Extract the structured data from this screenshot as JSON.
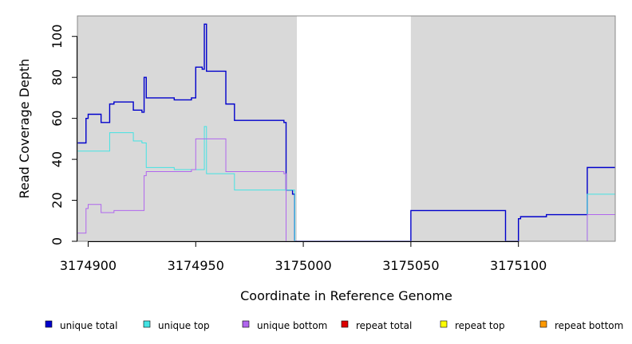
{
  "chart_data": {
    "type": "line",
    "line_style": "step",
    "xlabel": "Coordinate in Reference Genome",
    "ylabel": "Read Coverage Depth",
    "xlim": [
      3174895,
      3175145
    ],
    "ylim": [
      0,
      110
    ],
    "x_ticks": [
      3174900,
      3174950,
      3175000,
      3175050,
      3175100
    ],
    "y_ticks": [
      0,
      20,
      40,
      60,
      80,
      100
    ],
    "grid": false,
    "background_regions": [
      {
        "from": 3174895,
        "to": 3174997,
        "color": "#d9d9d9"
      },
      {
        "from": 3175050,
        "to": 3175145,
        "color": "#d9d9d9"
      }
    ],
    "legend_position": "bottom",
    "series": [
      {
        "name": "unique total",
        "color": "#0000cc",
        "points": [
          [
            3174895,
            48
          ],
          [
            3174899,
            48
          ],
          [
            3174899,
            60
          ],
          [
            3174900,
            60
          ],
          [
            3174900,
            62
          ],
          [
            3174906,
            62
          ],
          [
            3174906,
            58
          ],
          [
            3174910,
            58
          ],
          [
            3174910,
            67
          ],
          [
            3174912,
            67
          ],
          [
            3174912,
            68
          ],
          [
            3174921,
            68
          ],
          [
            3174921,
            64
          ],
          [
            3174925,
            64
          ],
          [
            3174925,
            63
          ],
          [
            3174926,
            63
          ],
          [
            3174926,
            80
          ],
          [
            3174927,
            80
          ],
          [
            3174927,
            70
          ],
          [
            3174940,
            70
          ],
          [
            3174940,
            69
          ],
          [
            3174948,
            69
          ],
          [
            3174948,
            70
          ],
          [
            3174950,
            70
          ],
          [
            3174950,
            85
          ],
          [
            3174953,
            85
          ],
          [
            3174953,
            84
          ],
          [
            3174954,
            84
          ],
          [
            3174954,
            106
          ],
          [
            3174955,
            106
          ],
          [
            3174955,
            83
          ],
          [
            3174964,
            83
          ],
          [
            3174964,
            67
          ],
          [
            3174968,
            67
          ],
          [
            3174968,
            59
          ],
          [
            3174991,
            59
          ],
          [
            3174991,
            58
          ],
          [
            3174992,
            58
          ],
          [
            3174992,
            25
          ],
          [
            3174995,
            25
          ],
          [
            3174995,
            23
          ],
          [
            3174996,
            23
          ],
          [
            3174996,
            0
          ],
          [
            3175050,
            0
          ],
          [
            3175050,
            15
          ],
          [
            3175094,
            15
          ],
          [
            3175094,
            0
          ],
          [
            3175100,
            0
          ],
          [
            3175100,
            11
          ],
          [
            3175101,
            11
          ],
          [
            3175101,
            12
          ],
          [
            3175113,
            12
          ],
          [
            3175113,
            13
          ],
          [
            3175132,
            13
          ],
          [
            3175132,
            36
          ],
          [
            3175145,
            36
          ]
        ]
      },
      {
        "name": "unique top",
        "color": "#44e3e3",
        "points": [
          [
            3174895,
            44
          ],
          [
            3174910,
            44
          ],
          [
            3174910,
            53
          ],
          [
            3174921,
            53
          ],
          [
            3174921,
            49
          ],
          [
            3174925,
            49
          ],
          [
            3174925,
            48
          ],
          [
            3174927,
            48
          ],
          [
            3174927,
            36
          ],
          [
            3174940,
            36
          ],
          [
            3174940,
            35
          ],
          [
            3174954,
            35
          ],
          [
            3174954,
            56
          ],
          [
            3174955,
            56
          ],
          [
            3174955,
            33
          ],
          [
            3174968,
            33
          ],
          [
            3174968,
            25
          ],
          [
            3174996,
            25
          ],
          [
            3174996,
            0
          ],
          [
            3175132,
            0
          ],
          [
            3175132,
            23
          ],
          [
            3175145,
            23
          ]
        ]
      },
      {
        "name": "unique bottom",
        "color": "#b066ee",
        "points": [
          [
            3174895,
            4
          ],
          [
            3174899,
            4
          ],
          [
            3174899,
            16
          ],
          [
            3174900,
            16
          ],
          [
            3174900,
            18
          ],
          [
            3174906,
            18
          ],
          [
            3174906,
            14
          ],
          [
            3174912,
            14
          ],
          [
            3174912,
            15
          ],
          [
            3174926,
            15
          ],
          [
            3174926,
            32
          ],
          [
            3174927,
            32
          ],
          [
            3174927,
            34
          ],
          [
            3174948,
            34
          ],
          [
            3174948,
            35
          ],
          [
            3174950,
            35
          ],
          [
            3174950,
            50
          ],
          [
            3174964,
            50
          ],
          [
            3174964,
            34
          ],
          [
            3174991,
            34
          ],
          [
            3174991,
            33
          ],
          [
            3174992,
            33
          ],
          [
            3174992,
            0
          ],
          [
            3175132,
            0
          ],
          [
            3175132,
            13
          ],
          [
            3175145,
            13
          ]
        ]
      },
      {
        "name": "repeat total",
        "color": "#dd0000",
        "points": [
          [
            3174895,
            0
          ],
          [
            3175145,
            0
          ]
        ]
      },
      {
        "name": "repeat top",
        "color": "#ffff00",
        "points": [
          [
            3174895,
            0
          ],
          [
            3175145,
            0
          ]
        ]
      },
      {
        "name": "repeat bottom",
        "color": "#ff9900",
        "points": [
          [
            3174895,
            0
          ],
          [
            3175145,
            0
          ]
        ]
      }
    ]
  }
}
